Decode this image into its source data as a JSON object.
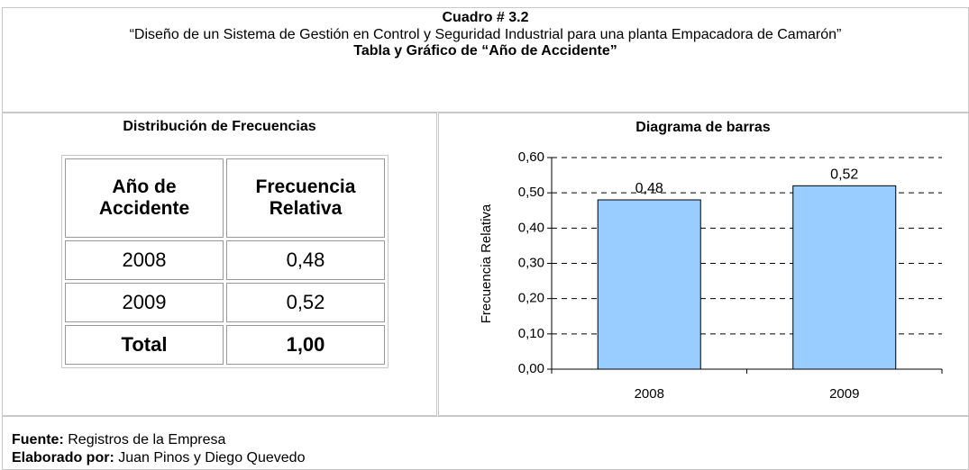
{
  "header": {
    "title": "Cuadro # 3.2",
    "subtitle": "“Diseño de un Sistema de Gestión en Control y Seguridad Industrial para una planta Empacadora de Camarón”",
    "caption": "Tabla y Gráfico de  “Año de Accidente”"
  },
  "table": {
    "title": "Distribución de Frecuencias",
    "columns": [
      "Año de Accidente",
      "Frecuencia Relativa"
    ],
    "rows": [
      [
        "2008",
        "0,48"
      ],
      [
        "2009",
        "0,52"
      ],
      [
        "Total",
        "1,00"
      ]
    ]
  },
  "chart_data": {
    "type": "bar",
    "title": "Diagrama de barras",
    "y_label": "Frecuencia Relativa",
    "categories": [
      "2008",
      "2009"
    ],
    "values": [
      0.48,
      0.52
    ],
    "value_labels": [
      "0,48",
      "0,52"
    ],
    "color": "#99ccff",
    "ylim": [
      0,
      0.6
    ],
    "yticks": [
      {
        "value": 0,
        "label": "0,00"
      },
      {
        "value": 0.1,
        "label": "0,10"
      },
      {
        "value": 0.2,
        "label": "0,20"
      },
      {
        "value": 0.3,
        "label": "0,30"
      },
      {
        "value": 0.4,
        "label": "0,40"
      },
      {
        "value": 0.5,
        "label": "0,50"
      },
      {
        "value": 0.6,
        "label": "0,60"
      }
    ],
    "grid": true
  },
  "footer": {
    "lines": [
      {
        "label": "Fuente:",
        "text": "Registros de la Empresa"
      },
      {
        "label": "Elaborado por:",
        "text": "Juan Pinos y Diego Quevedo"
      }
    ]
  }
}
